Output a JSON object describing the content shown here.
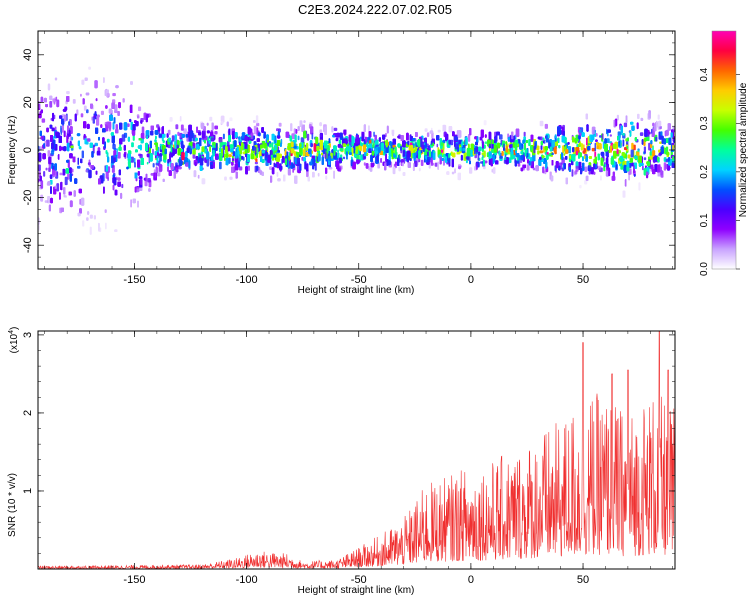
{
  "title": "C2E3.2024.222.07.02.R05",
  "chart_data": [
    {
      "type": "heatmap",
      "xlabel": "Height of straight line (km)",
      "ylabel": "Frequency (Hz)",
      "xlim": [
        -193,
        91
      ],
      "ylim": [
        -50,
        50
      ],
      "xticks": [
        "-150",
        "-100",
        "-50",
        "0",
        "50"
      ],
      "xtick_values": [
        -150,
        -100,
        -50,
        0,
        50
      ],
      "yticks": [
        "-40",
        "-20",
        "0",
        "20",
        "40"
      ],
      "ytick_values": [
        -40,
        -20,
        0,
        20,
        40
      ],
      "colorbar": {
        "label": "Normalized spectral amplitude",
        "range": [
          0,
          0.49
        ],
        "ticks": [
          "0.0",
          "0.1",
          "0.2",
          "0.3",
          "0.4"
        ],
        "tick_values": [
          0,
          0.1,
          0.2,
          0.3,
          0.4
        ],
        "colors": [
          "#ffffff",
          "#c9a3ff",
          "#8f00ff",
          "#4a00ff",
          "#0050ff",
          "#00d4ff",
          "#00ff9c",
          "#44ff00",
          "#c8ff00",
          "#ffcc00",
          "#ff6600",
          "#ff0040",
          "#ff00b4"
        ]
      },
      "envelope_halfwidth": [
        {
          "x": -190,
          "hw": 42
        },
        {
          "x": -170,
          "hw": 40
        },
        {
          "x": -150,
          "hw": 35
        },
        {
          "x": -140,
          "hw": 18
        },
        {
          "x": -120,
          "hw": 14
        },
        {
          "x": -100,
          "hw": 15
        },
        {
          "x": -80,
          "hw": 14
        },
        {
          "x": -60,
          "hw": 12
        },
        {
          "x": -40,
          "hw": 10
        },
        {
          "x": -20,
          "hw": 9
        },
        {
          "x": 0,
          "hw": 12
        },
        {
          "x": 20,
          "hw": 10
        },
        {
          "x": 45,
          "hw": 16
        },
        {
          "x": 60,
          "hw": 14
        },
        {
          "x": 70,
          "hw": 20
        },
        {
          "x": 91,
          "hw": 12
        }
      ],
      "core_amplitude": [
        {
          "x": -190,
          "a": 0.15
        },
        {
          "x": -160,
          "a": 0.2
        },
        {
          "x": -140,
          "a": 0.25
        },
        {
          "x": -100,
          "a": 0.3
        },
        {
          "x": -50,
          "a": 0.32
        },
        {
          "x": 0,
          "a": 0.3
        },
        {
          "x": 40,
          "a": 0.34
        },
        {
          "x": 70,
          "a": 0.36
        },
        {
          "x": 91,
          "a": 0.3
        }
      ]
    },
    {
      "type": "line",
      "xlabel": "Height of straight line (km)",
      "ylabel": "SNR (10 * v/v)",
      "yscale_label": "(x10",
      "yscale_exp": "4",
      "yscale_close": ")",
      "xlim": [
        -193,
        91
      ],
      "ylim": [
        0,
        3.05
      ],
      "xticks": [
        "-150",
        "-100",
        "-50",
        "0",
        "50"
      ],
      "xtick_values": [
        -150,
        -100,
        -50,
        0,
        50
      ],
      "yticks": [
        "1",
        "2",
        "3"
      ],
      "ytick_values": [
        1,
        2,
        3
      ],
      "color": "#f03030",
      "envelope": [
        {
          "x": -193,
          "y": 0.04
        },
        {
          "x": -150,
          "y": 0.05
        },
        {
          "x": -120,
          "y": 0.06
        },
        {
          "x": -105,
          "y": 0.14
        },
        {
          "x": -95,
          "y": 0.24
        },
        {
          "x": -82,
          "y": 0.2
        },
        {
          "x": -75,
          "y": 0.1
        },
        {
          "x": -60,
          "y": 0.12
        },
        {
          "x": -50,
          "y": 0.28
        },
        {
          "x": -40,
          "y": 0.45
        },
        {
          "x": -30,
          "y": 0.65
        },
        {
          "x": -20,
          "y": 1.1
        },
        {
          "x": -10,
          "y": 1.2
        },
        {
          "x": 0,
          "y": 1.35
        },
        {
          "x": 10,
          "y": 1.4
        },
        {
          "x": 20,
          "y": 1.55
        },
        {
          "x": 30,
          "y": 1.75
        },
        {
          "x": 40,
          "y": 1.9
        },
        {
          "x": 50,
          "y": 2.25
        },
        {
          "x": 60,
          "y": 2.25
        },
        {
          "x": 70,
          "y": 2.0
        },
        {
          "x": 80,
          "y": 2.3
        },
        {
          "x": 91,
          "y": 2.1
        }
      ],
      "peaks": [
        {
          "x": 50,
          "y": 2.9
        },
        {
          "x": 63,
          "y": 2.5
        },
        {
          "x": 70,
          "y": 2.55
        },
        {
          "x": 84,
          "y": 3.05
        },
        {
          "x": 88,
          "y": 2.55
        }
      ]
    }
  ]
}
